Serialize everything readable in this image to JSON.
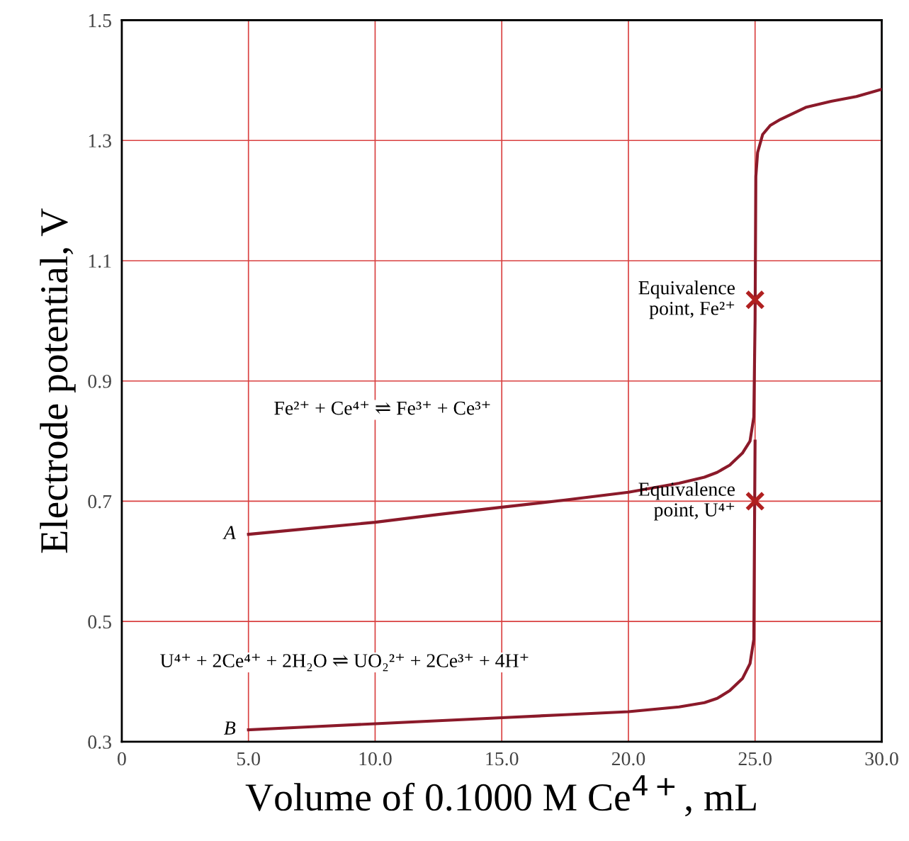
{
  "chart_data": {
    "type": "line",
    "xlabel": "Volume of 0.1000 M Ce$^{4+}$, mL",
    "ylabel": "Electrode potential, V",
    "xlim": [
      0,
      30
    ],
    "ylim": [
      0.3,
      1.5
    ],
    "xticks": [
      0,
      {
        "value": 5,
        "label": "5.0"
      },
      {
        "value": 10,
        "label": "10.0"
      },
      {
        "value": 15,
        "label": "15.0"
      },
      {
        "value": 20,
        "label": "20.0"
      },
      {
        "value": 25,
        "label": "25.0"
      },
      {
        "value": 30,
        "label": "30.0"
      }
    ],
    "yticks": [
      0.3,
      0.5,
      0.7,
      0.9,
      1.1,
      1.3,
      1.5
    ],
    "grid": true,
    "line_style": "solid",
    "marker": "none",
    "series": [
      {
        "name": "A",
        "color": "#8b1a2a",
        "x": [
          5,
          7.5,
          10,
          12.5,
          15,
          17.5,
          20,
          22,
          23,
          23.5,
          24,
          24.5,
          24.8,
          24.95,
          25,
          25.03,
          25.1,
          25.3,
          25.6,
          26,
          27,
          28,
          29,
          30
        ],
        "values": [
          0.645,
          0.655,
          0.665,
          0.678,
          0.69,
          0.702,
          0.715,
          0.73,
          0.74,
          0.748,
          0.76,
          0.78,
          0.8,
          0.84,
          1.0,
          1.24,
          1.28,
          1.31,
          1.325,
          1.335,
          1.355,
          1.365,
          1.373,
          1.385
        ]
      },
      {
        "name": "B",
        "color": "#8b1a2a",
        "x": [
          5,
          7.5,
          10,
          12.5,
          15,
          17.5,
          20,
          22,
          23,
          23.5,
          24,
          24.5,
          24.8,
          24.95,
          25
        ],
        "values": [
          0.32,
          0.325,
          0.33,
          0.335,
          0.34,
          0.345,
          0.35,
          0.358,
          0.365,
          0.372,
          0.385,
          0.405,
          0.43,
          0.47,
          0.8
        ]
      },
      {
        "type": "scatter",
        "marker": "cross",
        "color": "#b02020",
        "x": [
          25,
          25
        ],
        "values": [
          1.035,
          0.7
        ]
      }
    ],
    "annotations": [
      {
        "text": "Equivalence\npoint, Fe²⁺",
        "x": 25,
        "y": 1.035
      },
      {
        "text": "Equivalence\npoint, U⁴⁺",
        "x": 25,
        "y": 0.7
      },
      "Fe²⁺ + Ce⁴⁺ ⇌ Fe³⁺ + Ce³⁺",
      "U⁴⁺ + 2Ce⁴⁺ + 2H₂O ⇌ UO₂²⁺ + 2Ce³⁺ + 4H⁺"
    ]
  }
}
